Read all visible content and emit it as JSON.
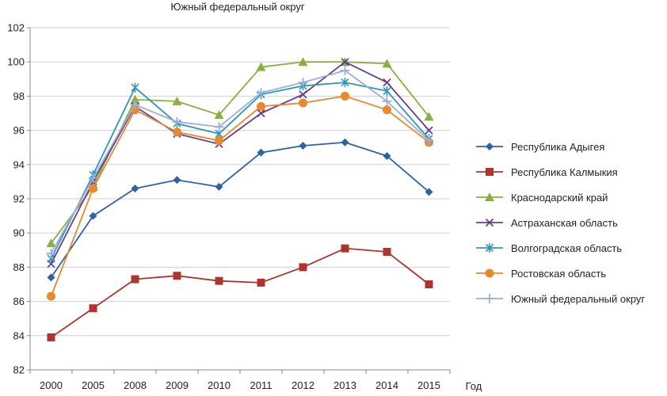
{
  "chart_data": {
    "type": "line",
    "title": "Южный федеральный округ",
    "xlabel": "Год",
    "ylabel": "",
    "ylim": [
      82,
      102
    ],
    "yticks": [
      82,
      84,
      86,
      88,
      90,
      92,
      94,
      96,
      98,
      100,
      102
    ],
    "grid": true,
    "legend_position": "right",
    "categories": [
      "2000",
      "2005",
      "2008",
      "2009",
      "2010",
      "2011",
      "2012",
      "2013",
      "2014",
      "2015"
    ],
    "series": [
      {
        "name": "Республика Адыгея",
        "color": "#2e62a8",
        "marker": "diamond",
        "values": [
          87.4,
          91.0,
          92.6,
          93.1,
          92.7,
          94.7,
          95.1,
          95.3,
          94.5,
          92.4
        ]
      },
      {
        "name": "Республика Калмыкия",
        "color": "#b0332e",
        "marker": "square",
        "values": [
          83.9,
          85.6,
          87.3,
          87.5,
          87.2,
          87.1,
          88.0,
          89.1,
          88.9,
          87.0
        ]
      },
      {
        "name": "Краснодарский край",
        "color": "#8bb040",
        "marker": "triangle",
        "values": [
          89.4,
          92.7,
          97.8,
          97.7,
          96.9,
          99.7,
          100.0,
          100.0,
          99.9,
          96.8
        ]
      },
      {
        "name": "Астраханская область",
        "color": "#6a3d8e",
        "marker": "x",
        "values": [
          88.2,
          93.0,
          97.4,
          95.8,
          95.2,
          97.0,
          98.1,
          100.0,
          98.8,
          96.0
        ]
      },
      {
        "name": "Волгоградская область",
        "color": "#2f97b6",
        "marker": "star",
        "values": [
          88.5,
          93.4,
          98.5,
          96.4,
          95.8,
          98.1,
          98.6,
          98.8,
          98.3,
          95.5
        ]
      },
      {
        "name": "Ростовская область",
        "color": "#e8892b",
        "marker": "circle",
        "values": [
          86.3,
          92.6,
          97.2,
          95.9,
          95.4,
          97.4,
          97.6,
          98.0,
          97.2,
          95.3
        ]
      },
      {
        "name": "Южный федеральный округ",
        "color": "#9aaede",
        "marker": "plus",
        "values": [
          88.8,
          93.2,
          97.5,
          96.5,
          96.2,
          98.2,
          98.8,
          99.5,
          97.7,
          95.4
        ]
      }
    ]
  }
}
